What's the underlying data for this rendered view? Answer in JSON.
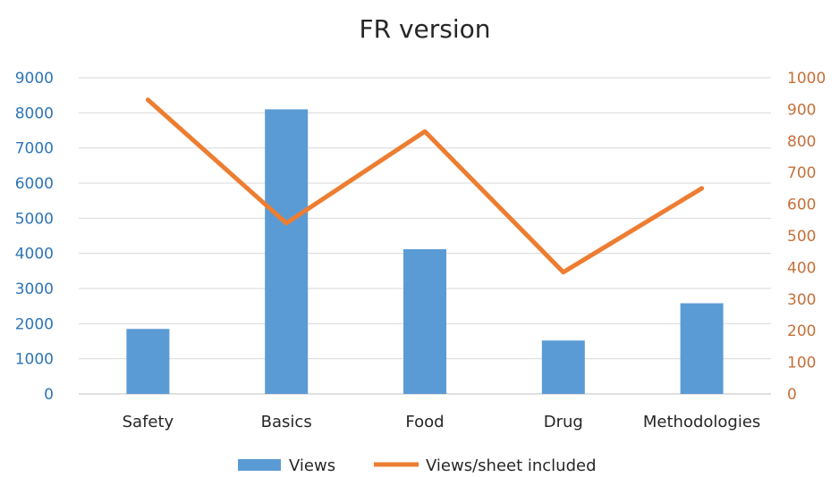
{
  "chart_data": {
    "type": "bar",
    "title": "FR version",
    "categories": [
      "Safety",
      "Basics",
      "Food",
      "Drug",
      "Methodologies"
    ],
    "series": [
      {
        "name": "Views",
        "type": "bar",
        "axis": "left",
        "color": "#5b9bd5",
        "values": [
          1850,
          8100,
          4120,
          1520,
          2580
        ]
      },
      {
        "name": "Views/sheet included",
        "type": "line",
        "axis": "right",
        "color": "#ed7d31",
        "values": [
          930,
          540,
          830,
          385,
          650
        ]
      }
    ],
    "y_left": {
      "min": 0,
      "max": 9000,
      "step": 1000,
      "ticks": [
        "0",
        "1000",
        "2000",
        "3000",
        "4000",
        "5000",
        "6000",
        "7000",
        "8000",
        "9000"
      ]
    },
    "y_right": {
      "min": 0,
      "max": 1000,
      "step": 100,
      "ticks": [
        "0",
        "100",
        "200",
        "300",
        "400",
        "500",
        "600",
        "700",
        "800",
        "900",
        "1000"
      ]
    },
    "grid": true,
    "legend_position": "bottom"
  }
}
